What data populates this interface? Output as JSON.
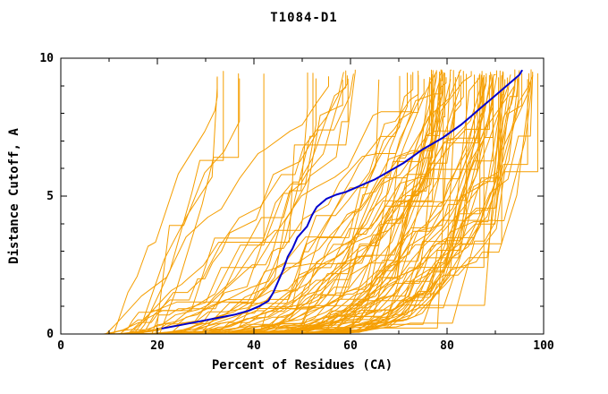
{
  "title": "T1084-D1",
  "chart_data": {
    "type": "line",
    "title": "T1084-D1",
    "xlabel": "Percent of Residues (CA)",
    "ylabel": "Distance Cutoff, A",
    "xlim": [
      0,
      100
    ],
    "ylim": [
      0,
      10
    ],
    "x_major_ticks": [
      0,
      20,
      40,
      60,
      80,
      100
    ],
    "x_minor_step": 10,
    "y_major_ticks": [
      0,
      5,
      10
    ],
    "y_minor_step": 1,
    "grid": false,
    "legend": "none",
    "background": "#ffffff",
    "axis_color": "#000000",
    "highlight_series": {
      "name": "highlighted-model-curve",
      "color": "#0000cd",
      "stroke_width": 2,
      "x": [
        21,
        24,
        27,
        30,
        33,
        36,
        39,
        41,
        43,
        44,
        45,
        46,
        47,
        48,
        49,
        50,
        51,
        52,
        53,
        55,
        57,
        59,
        61,
        63,
        65,
        67,
        69,
        71,
        73,
        75,
        77,
        79,
        81,
        83,
        85,
        87,
        89,
        91,
        93,
        95,
        95.5
      ],
      "y": [
        0.2,
        0.3,
        0.4,
        0.5,
        0.6,
        0.7,
        0.85,
        1.0,
        1.2,
        1.5,
        1.9,
        2.3,
        2.8,
        3.1,
        3.5,
        3.7,
        3.9,
        4.3,
        4.6,
        4.9,
        5.05,
        5.15,
        5.3,
        5.45,
        5.6,
        5.8,
        6.0,
        6.2,
        6.45,
        6.7,
        6.9,
        7.1,
        7.35,
        7.6,
        7.9,
        8.2,
        8.5,
        8.8,
        9.1,
        9.4,
        9.55
      ]
    },
    "ensemble": {
      "name": "prediction-curves",
      "color": "#f59e00",
      "stroke_width": 1,
      "seed": 20847,
      "y_top": [
        9.2,
        9.6
      ],
      "groups": [
        {
          "count": 12,
          "x_start": [
            7,
            18
          ],
          "x_end": [
            30,
            62
          ],
          "shape": [
            0.9,
            1.6
          ]
        },
        {
          "count": 28,
          "x_start": [
            8,
            30
          ],
          "x_end": [
            52,
            90
          ],
          "shape": [
            1.4,
            3.0
          ]
        },
        {
          "count": 55,
          "x_start": [
            12,
            45
          ],
          "x_end": [
            76,
            99
          ],
          "shape": [
            2.5,
            7.0
          ]
        }
      ]
    }
  }
}
